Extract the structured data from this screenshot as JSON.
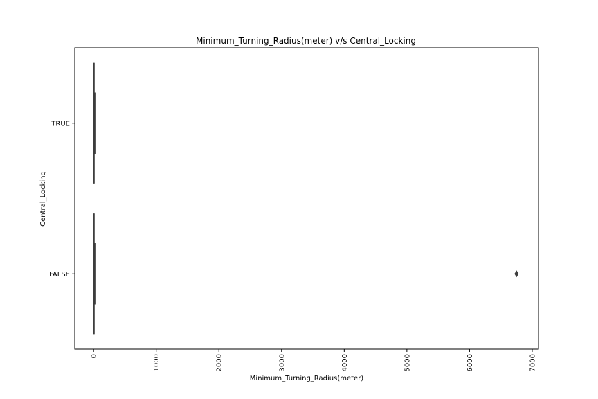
{
  "chart_data": {
    "type": "box",
    "orientation": "horizontal",
    "title": "Minimum_Turning_Radius(meter) v/s Central_Locking",
    "xlabel": "Minimum_Turning_Radius(meter)",
    "ylabel": "Central_Locking",
    "xlim": [
      -300,
      7100
    ],
    "xticks": [
      0,
      1000,
      2000,
      3000,
      4000,
      5000,
      6000,
      7000
    ],
    "xtick_labels": [
      "0",
      "1000",
      "2000",
      "3000",
      "4000",
      "5000",
      "6000",
      "7000"
    ],
    "xtick_rotation": 90,
    "categories": [
      "TRUE",
      "FALSE"
    ],
    "boxes": [
      {
        "category": "TRUE",
        "whisker_low": 3.8,
        "q1": 4.9,
        "median": 5.2,
        "q3": 5.6,
        "whisker_high": 6.9,
        "outliers": []
      },
      {
        "category": "FALSE",
        "whisker_low": 3.8,
        "q1": 4.8,
        "median": 5.1,
        "q3": 5.5,
        "whisker_high": 6.8,
        "outliers": [
          6750
        ]
      }
    ],
    "grid": false,
    "legend": false
  }
}
